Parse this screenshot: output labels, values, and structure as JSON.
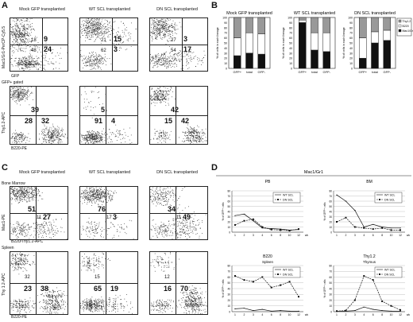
{
  "panelA": {
    "label": "A",
    "columns": [
      "Mock GFP transplanted",
      "WT SCL transplanted",
      "DN SCL transplanted"
    ],
    "row1_ylabel": "Mac1/Gr1-PerCP-Cy5.5",
    "row1_xlabel": "GFP",
    "gate_label": "GFP+ gated",
    "row2_ylabel": "Thy1.2-APC",
    "row2_xlabel": "B220-PE",
    "row1": [
      {
        "tl": "18",
        "tr": "9",
        "bl": "48",
        "br": "24"
      },
      {
        "tl": "21",
        "tr": "15",
        "bl": "62",
        "br": "3"
      },
      {
        "tl": "27",
        "tr": "3",
        "bl": "54",
        "br": "17"
      }
    ],
    "row2": [
      {
        "tl": "39",
        "bl": "28",
        "br": "32"
      },
      {
        "tl": "5",
        "bl": "91",
        "br": "4"
      },
      {
        "tl": "42",
        "bl": "15",
        "br": "42"
      }
    ]
  },
  "panelB": {
    "label": "B",
    "charts": [
      {
        "title": "Mock GFP transplanted"
      },
      {
        "title": "WT SCL transplanted"
      },
      {
        "title": "DN SCL transplanted"
      }
    ],
    "ylabel": "% of cells in each lineage",
    "yticks": [
      "0",
      "10",
      "20",
      "30",
      "40",
      "50",
      "60",
      "70",
      "80",
      "90",
      "100"
    ],
    "categories": [
      "GFP+",
      "total",
      "GFP-"
    ],
    "legend": [
      "Thy1.2",
      "B220",
      "Mac1/Gr1"
    ],
    "colors": {
      "thy": "#999999",
      "b220": "#ffffff",
      "mac": "#111111"
    }
  },
  "panelC": {
    "label": "C",
    "columns": [
      "Mock GFP transplanted",
      "WT SCL transplanted",
      "DN SCL transplanted"
    ],
    "row1_title": "Bone Marrow",
    "row1_ylabel": "Mac1-PE",
    "row1_xlabel": "B220/Thy1.2-APC",
    "row2_title": "Spleen",
    "row2_ylabel": "Thy 1.2-APC",
    "row2_xlabel": "B220-PE",
    "row1": [
      {
        "tl": "51",
        "bl": "11",
        "br": "27"
      },
      {
        "tl": "76",
        "bl": "17",
        "br": "3"
      },
      {
        "tl": "34",
        "bl": "11",
        "br": "49"
      }
    ],
    "row2": [
      {
        "tl": "32",
        "bl": "23",
        "br": "38"
      },
      {
        "tl": "15",
        "bl": "65",
        "br": "19"
      },
      {
        "tl": "12",
        "bl": "16",
        "br": "70"
      }
    ]
  },
  "panelD": {
    "label": "D",
    "header": "Mac1/Gr1",
    "xticks": [
      "1",
      "2",
      "3",
      "4",
      "6",
      "8",
      "10",
      "12"
    ],
    "wk": "wk",
    "ylabel": "% of GFP+ cells",
    "yticks": [
      "0",
      "10",
      "20",
      "30",
      "40",
      "50",
      "60",
      "70",
      "80"
    ],
    "series_names": [
      "WT SCL",
      "DN SCL"
    ],
    "charts": [
      {
        "title": "PB"
      },
      {
        "title": "BM"
      },
      {
        "title": "B220",
        "subtitle": "Spleen"
      },
      {
        "title": "Thy1.2",
        "subtitle": "Thymus"
      }
    ]
  },
  "chart_data": [
    {
      "type": "bar",
      "title": "Mock GFP transplanted",
      "categories": [
        "GFP+",
        "total",
        "GFP-"
      ],
      "series": [
        {
          "name": "Mac1/Gr1",
          "values": [
            25,
            30,
            28
          ]
        },
        {
          "name": "B220",
          "values": [
            35,
            40,
            40
          ]
        },
        {
          "name": "Thy1.2",
          "values": [
            40,
            30,
            32
          ]
        }
      ],
      "ylabel": "% of cells in each lineage",
      "ylim": [
        0,
        100
      ]
    },
    {
      "type": "bar",
      "title": "WT SCL transplanted",
      "categories": [
        "GFP+",
        "total",
        "GFP-"
      ],
      "series": [
        {
          "name": "Mac1/Gr1",
          "values": [
            90,
            36,
            33
          ]
        },
        {
          "name": "B220",
          "values": [
            5,
            34,
            37
          ]
        },
        {
          "name": "Thy1.2",
          "values": [
            5,
            30,
            30
          ]
        }
      ],
      "ylabel": "% of cells in each lineage",
      "ylim": [
        0,
        100
      ]
    },
    {
      "type": "bar",
      "title": "DN SCL transplanted",
      "categories": [
        "GFP+",
        "total",
        "GFP-"
      ],
      "series": [
        {
          "name": "Mac1/Gr1",
          "values": [
            20,
            50,
            55
          ]
        },
        {
          "name": "B220",
          "values": [
            40,
            22,
            20
          ]
        },
        {
          "name": "Thy1.2",
          "values": [
            40,
            28,
            25
          ]
        }
      ],
      "ylabel": "% of cells in each lineage",
      "ylim": [
        0,
        100
      ]
    },
    {
      "type": "line",
      "title": "PB",
      "x": [
        1,
        2,
        3,
        4,
        6,
        8,
        10,
        12
      ],
      "series": [
        {
          "name": "WT SCL",
          "values": [
            32,
            35,
            22,
            8,
            7,
            6,
            4,
            5
          ]
        },
        {
          "name": "DN SCL",
          "values": [
            14,
            22,
            25,
            10,
            5,
            4,
            3,
            6
          ]
        }
      ],
      "ylabel": "% of GFP+ cells",
      "ylim": [
        0,
        80
      ]
    },
    {
      "type": "line",
      "title": "BM",
      "x": [
        1,
        2,
        3,
        4,
        6,
        8,
        10,
        12
      ],
      "series": [
        {
          "name": "WT SCL",
          "values": [
            72,
            60,
            42,
            10,
            15,
            10,
            8,
            8
          ]
        },
        {
          "name": "DN SCL",
          "values": [
            20,
            28,
            10,
            8,
            6,
            8,
            4,
            4
          ]
        }
      ],
      "ylabel": "% of GFP+ cells",
      "ylim": [
        0,
        80
      ]
    },
    {
      "type": "line",
      "title": "B220",
      "x": [
        1,
        2,
        3,
        4,
        6,
        8,
        10,
        12
      ],
      "series": [
        {
          "name": "WT SCL",
          "values": [
            5,
            6,
            2,
            4,
            1,
            2,
            1,
            1
          ]
        },
        {
          "name": "DN SCL",
          "values": [
            62,
            55,
            52,
            60,
            42,
            46,
            52,
            26
          ]
        }
      ],
      "ylabel": "% of GFP+ cells",
      "ylim": [
        0,
        80
      ]
    },
    {
      "type": "line",
      "title": "Thy1.2",
      "x": [
        1,
        2,
        3,
        4,
        6,
        8,
        10,
        12
      ],
      "series": [
        {
          "name": "WT SCL",
          "values": [
            1,
            1,
            2,
            8,
            4,
            2,
            1,
            1
          ]
        },
        {
          "name": "DN SCL",
          "values": [
            1,
            2,
            20,
            62,
            55,
            18,
            10,
            3
          ]
        }
      ],
      "ylabel": "% of GFP+ cells",
      "ylim": [
        0,
        80
      ]
    }
  ]
}
